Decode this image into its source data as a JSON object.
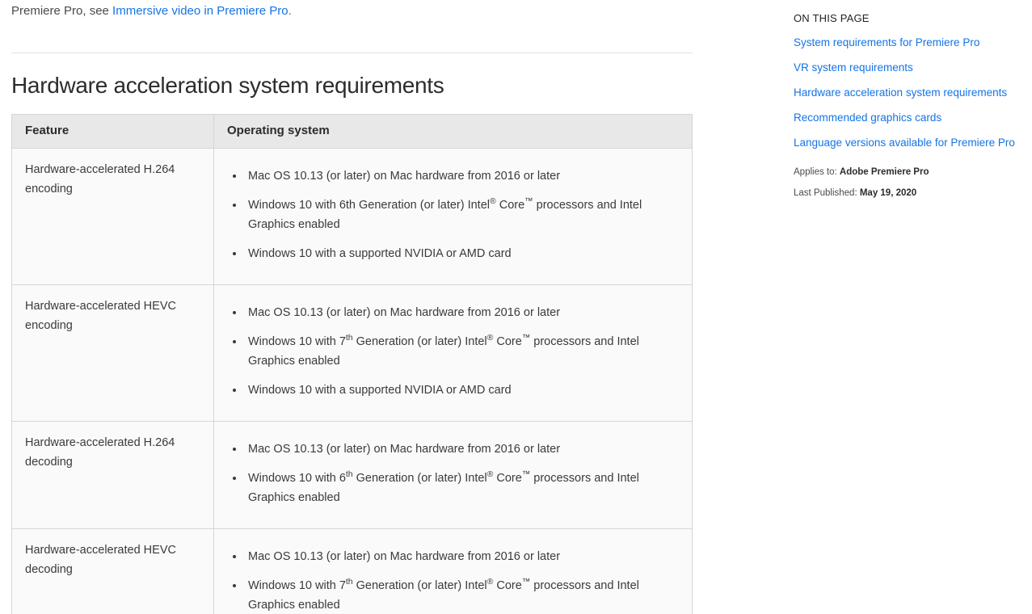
{
  "intro": {
    "prefix": "Premiere Pro, see ",
    "link_text": "Immersive video in Premiere Pro."
  },
  "heading": "Hardware acceleration system requirements",
  "table": {
    "headers": [
      "Feature",
      "Operating system"
    ],
    "rows": [
      {
        "feature": "Hardware-accelerated H.264 encoding",
        "bullets": [
          [
            {
              "t": "Mac OS 10.13 (or later) on Mac hardware from 2016 or later"
            }
          ],
          [
            {
              "t": "Windows 10 with 6th Generation (or later) Intel"
            },
            {
              "t": "®",
              "sup": true
            },
            {
              "t": " Core"
            },
            {
              "t": "™",
              "sup": true
            },
            {
              "t": " processors and Intel Graphics enabled"
            }
          ],
          [
            {
              "t": "Windows 10 with a supported NVIDIA or AMD card"
            }
          ]
        ]
      },
      {
        "feature": "Hardware-accelerated HEVC encoding",
        "bullets": [
          [
            {
              "t": "Mac OS 10.13 (or later) on Mac hardware from 2016 or later"
            }
          ],
          [
            {
              "t": "Windows 10 with 7"
            },
            {
              "t": "th",
              "sup": true
            },
            {
              "t": " Generation (or later) Intel"
            },
            {
              "t": "®",
              "sup": true
            },
            {
              "t": " Core"
            },
            {
              "t": "™",
              "sup": true
            },
            {
              "t": " processors and Intel Graphics enabled"
            }
          ],
          [
            {
              "t": "Windows 10 with a supported NVIDIA or AMD card"
            }
          ]
        ]
      },
      {
        "feature": "Hardware-accelerated H.264 decoding",
        "bullets": [
          [
            {
              "t": "Mac OS 10.13 (or later) on Mac hardware from 2016 or later"
            }
          ],
          [
            {
              "t": "Windows 10 with 6"
            },
            {
              "t": "th",
              "sup": true
            },
            {
              "t": " Generation (or later) Intel"
            },
            {
              "t": "®",
              "sup": true
            },
            {
              "t": " Core"
            },
            {
              "t": "™",
              "sup": true
            },
            {
              "t": " processors and Intel Graphics enabled"
            }
          ]
        ]
      },
      {
        "feature": "Hardware-accelerated HEVC decoding",
        "bullets": [
          [
            {
              "t": "Mac OS 10.13 (or later) on Mac hardware from 2016 or later"
            }
          ],
          [
            {
              "t": "Windows 10 with 7"
            },
            {
              "t": "th",
              "sup": true
            },
            {
              "t": " Generation (or later) Intel"
            },
            {
              "t": "®",
              "sup": true
            },
            {
              "t": " Core"
            },
            {
              "t": "™",
              "sup": true
            },
            {
              "t": " processors and Intel Graphics enabled"
            }
          ]
        ]
      }
    ]
  },
  "sidebar": {
    "title": "ON THIS PAGE",
    "links": [
      "System requirements for Premiere Pro",
      "VR system requirements",
      "Hardware acceleration system requirements",
      "Recommended graphics cards",
      "Language versions available for Premiere Pro"
    ],
    "applies_to": {
      "label": "Applies to:",
      "value": "Adobe Premiere Pro"
    },
    "last_published": {
      "label": "Last Published:",
      "value": "May 19, 2020"
    }
  },
  "colors": {
    "link_blue": "#1473e6",
    "heading_text": "#2c2c2c",
    "body_text": "#3a3a3a",
    "table_header_bg": "#e8e8e8",
    "table_cell_bg": "#fafafa",
    "table_border": "#d5d5d5"
  }
}
